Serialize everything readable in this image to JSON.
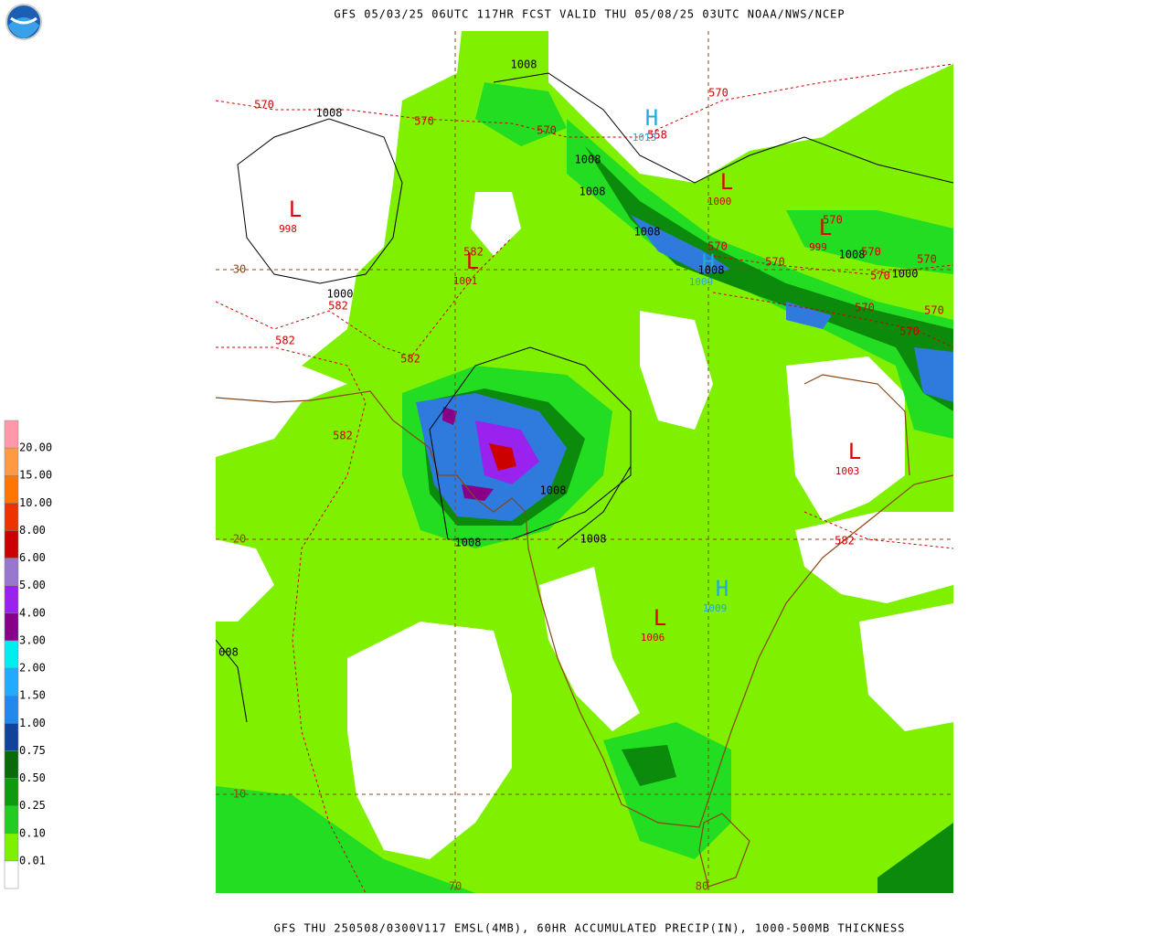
{
  "header": {
    "title": "GFS 05/03/25 06UTC 117HR FCST VALID THU 05/08/25 03UTC NOAA/NWS/NCEP"
  },
  "footer": {
    "caption": "GFS THU 250508/0300V117 EMSL(4MB), 60HR ACCUMULATED PRECIP(IN), 1000-500MB THICKNESS"
  },
  "legend": {
    "labels": [
      "20.00",
      "15.00",
      "10.00",
      "8.00",
      "6.00",
      "5.00",
      "4.00",
      "3.00",
      "2.00",
      "1.50",
      "1.00",
      "0.75",
      "0.50",
      "0.25",
      "0.10",
      "0.01"
    ]
  },
  "grid_labels": [
    "30",
    "20",
    "10",
    "70",
    "80"
  ],
  "pressure_centers": [
    {
      "symbol": "L",
      "value": "998"
    },
    {
      "symbol": "L",
      "value": "1001"
    },
    {
      "symbol": "H",
      "value": "1013"
    },
    {
      "symbol": "L",
      "value": "1000"
    },
    {
      "symbol": "L",
      "value": "999"
    },
    {
      "symbol": "H",
      "value": "1009"
    },
    {
      "symbol": "L",
      "value": "1003"
    },
    {
      "symbol": "H",
      "value": "1009"
    },
    {
      "symbol": "L",
      "value": "1006"
    }
  ],
  "isobar_labels": [
    "1008",
    "1008",
    "1008",
    "1008",
    "1008",
    "1008",
    "1000",
    "1008",
    "1000",
    "1008",
    "1008",
    "1008",
    "008"
  ],
  "thickness_labels": [
    "570",
    "570",
    "570",
    "570",
    "558",
    "570",
    "570",
    "570",
    "570",
    "570",
    "570",
    "570",
    "570",
    "570",
    "582",
    "582",
    "582",
    "582",
    "582",
    "582"
  ]
}
